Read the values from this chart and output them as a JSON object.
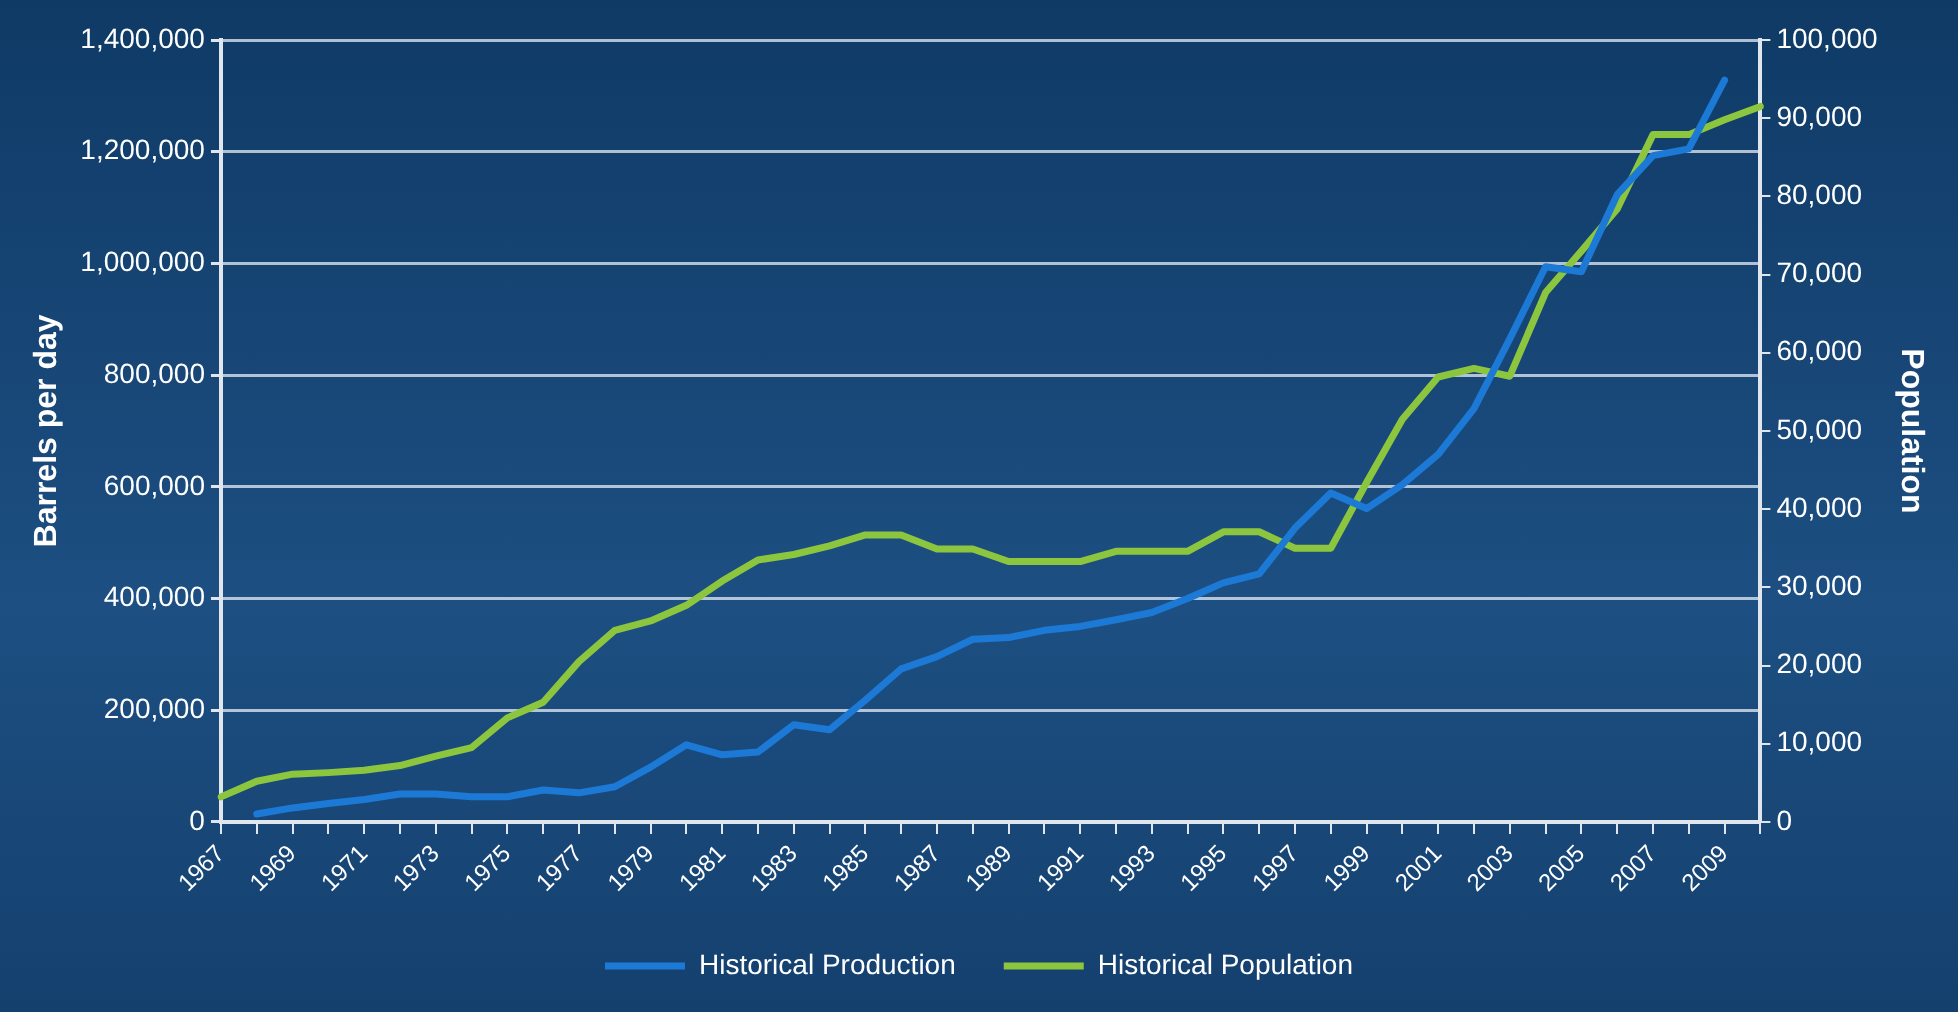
{
  "chart_data": {
    "type": "line",
    "xlabel": null,
    "ylabel": "Barrels per day",
    "y2label": "Population",
    "categories": [
      "1967",
      null,
      "1969",
      null,
      "1971",
      null,
      "1973",
      null,
      "1975",
      null,
      "1977",
      null,
      "1979",
      null,
      "1981",
      null,
      "1983",
      null,
      "1985",
      null,
      "1987",
      null,
      "1989",
      null,
      "1991",
      null,
      "1993",
      null,
      "1995",
      null,
      "1997",
      null,
      "1999",
      null,
      "2001",
      null,
      "2003",
      null,
      "2005",
      null,
      "2007",
      null,
      "2009",
      null
    ],
    "series": [
      {
        "name": "Historical Production",
        "color": "#1c7ad6",
        "values": [
          null,
          14000,
          25000,
          33000,
          40000,
          50000,
          50000,
          45000,
          45000,
          57000,
          52000,
          63000,
          98000,
          138000,
          120000,
          125000,
          174000,
          165000,
          218000,
          274000,
          296000,
          327000,
          330000,
          343000,
          350000,
          362000,
          375000,
          400000,
          428000,
          444000,
          526000,
          589000,
          561000,
          604000,
          658000,
          740000,
          865000,
          994000,
          985000,
          1123000,
          1193000,
          1205000,
          1328000,
          null
        ]
      },
      {
        "name": "Historical Population",
        "color": "#8cc63e",
        "axis": "y2",
        "values": [
          3200,
          5200,
          6100,
          6300,
          6600,
          7200,
          8400,
          9500,
          13300,
          15300,
          20500,
          24500,
          25700,
          27700,
          30800,
          33500,
          34200,
          35300,
          36700,
          36700,
          34900,
          34900,
          33300,
          33300,
          33300,
          34600,
          34600,
          34600,
          37100,
          37100,
          35000,
          35000,
          43400,
          51500,
          56900,
          58000,
          57000,
          67700,
          73000,
          78400,
          87900,
          87900,
          89800,
          91500
        ]
      }
    ],
    "ylim": [
      0,
      1400000
    ],
    "yticks": [
      0,
      {
        "value": 200000,
        "label": "200,000"
      },
      {
        "value": 400000,
        "label": "400,000"
      },
      {
        "value": 600000,
        "label": "600,000"
      },
      {
        "value": 800000,
        "label": "800,000"
      },
      {
        "value": 1000000,
        "label": "1,000,000"
      },
      {
        "value": 1200000,
        "label": "1,200,000"
      },
      {
        "value": 1400000,
        "label": "1,400,000"
      }
    ],
    "y2lim": [
      0,
      100000
    ],
    "y2ticks": [
      0,
      {
        "value": 10000,
        "label": "10,000"
      },
      {
        "value": 20000,
        "label": "20,000"
      },
      {
        "value": 30000,
        "label": "30,000"
      },
      {
        "value": 40000,
        "label": "40,000"
      },
      {
        "value": 50000,
        "label": "50,000"
      },
      {
        "value": 60000,
        "label": "60,000"
      },
      {
        "value": 70000,
        "label": "70,000"
      },
      {
        "value": 80000,
        "label": "80,000"
      },
      {
        "value": 90000,
        "label": "90,000"
      },
      {
        "value": 100000,
        "label": "100,000"
      }
    ],
    "grid": "y",
    "legend": "bottom",
    "marker": "none",
    "line_style": "solid"
  }
}
